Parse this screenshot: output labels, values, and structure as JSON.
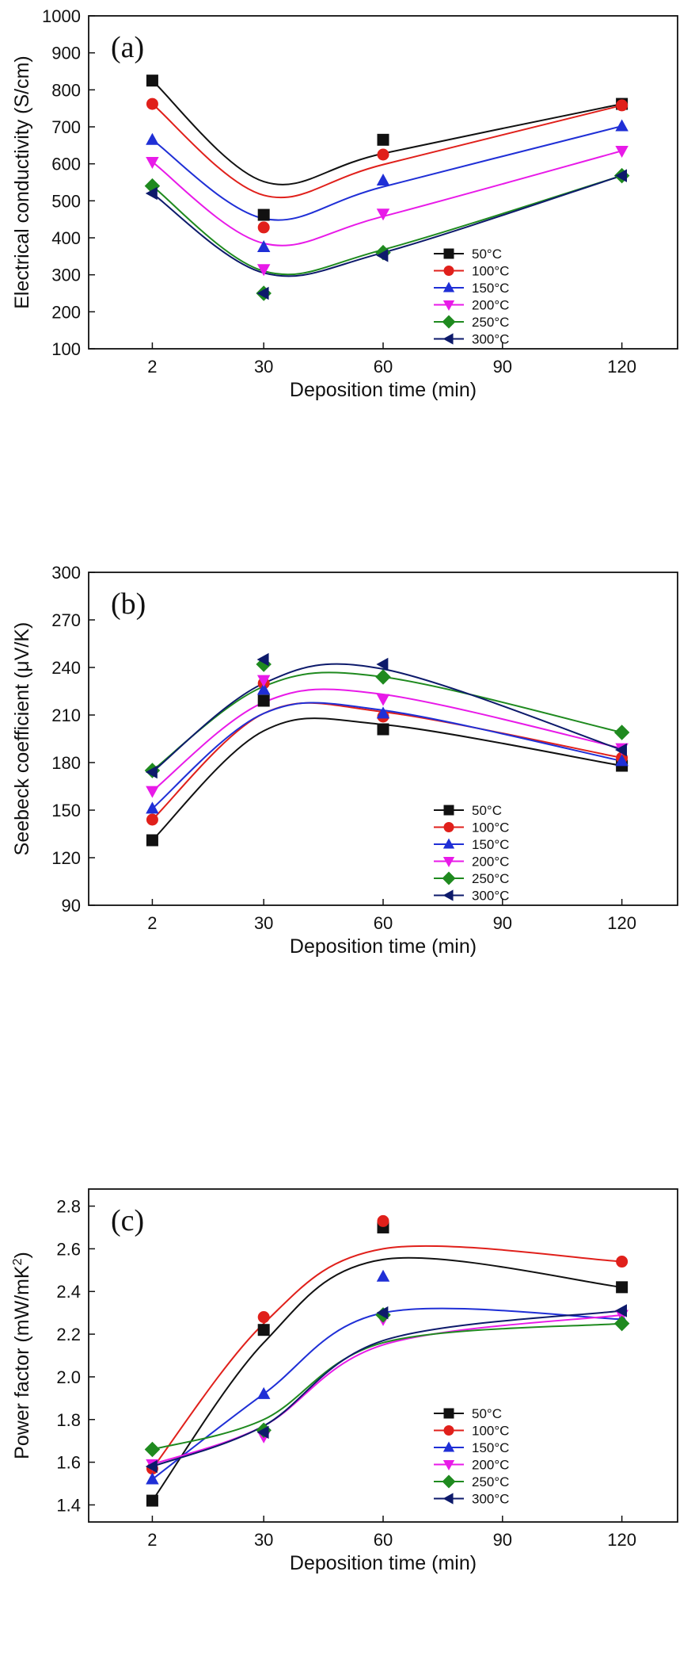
{
  "chart_data": [
    {
      "type": "scatter",
      "panel_label": "(a)",
      "xlabel": "Deposition time (min)",
      "ylabel": "Electrical conductivity (S/cm)",
      "x": [
        2,
        30,
        60,
        120
      ],
      "xticks": [
        "2",
        "30",
        "60",
        "90",
        "120"
      ],
      "yticks": [
        "100",
        "200",
        "300",
        "400",
        "500",
        "600",
        "700",
        "800",
        "900",
        "1000"
      ],
      "ylim": [
        100,
        1000
      ],
      "legend_position": "right-middle",
      "series": [
        {
          "name": "50°C",
          "values": [
            825,
            462,
            665,
            762
          ],
          "curve": [
            825,
            552,
            628,
            762
          ]
        },
        {
          "name": "100°C",
          "values": [
            762,
            428,
            625,
            758
          ],
          "curve": [
            762,
            515,
            598,
            758
          ]
        },
        {
          "name": "150°C",
          "values": [
            665,
            375,
            555,
            702
          ],
          "curve": [
            665,
            452,
            538,
            702
          ]
        },
        {
          "name": "200°C",
          "values": [
            605,
            315,
            465,
            635
          ],
          "curve": [
            605,
            385,
            458,
            635
          ]
        },
        {
          "name": "250°C",
          "values": [
            540,
            250,
            360,
            568
          ],
          "curve": [
            540,
            310,
            368,
            568
          ]
        },
        {
          "name": "300°C",
          "values": [
            520,
            250,
            352,
            568
          ],
          "curve": [
            520,
            305,
            360,
            568
          ]
        }
      ]
    },
    {
      "type": "scatter",
      "panel_label": "(b)",
      "xlabel": "Deposition time (min)",
      "ylabel": "Seebeck coefficient (μV/K)",
      "x": [
        2,
        30,
        60,
        120
      ],
      "xticks": [
        "2",
        "30",
        "60",
        "90",
        "120"
      ],
      "yticks": [
        "90",
        "120",
        "150",
        "180",
        "210",
        "240",
        "270",
        "300"
      ],
      "ylim": [
        90,
        300
      ],
      "legend_position": "bottom-right",
      "series": [
        {
          "name": "50°C",
          "values": [
            131,
            219,
            201,
            178
          ],
          "curve": [
            131,
            200,
            204,
            178
          ]
        },
        {
          "name": "100°C",
          "values": [
            144,
            230,
            209,
            183
          ],
          "curve": [
            144,
            211,
            212,
            183
          ]
        },
        {
          "name": "150°C",
          "values": [
            151,
            226,
            211,
            181
          ],
          "curve": [
            151,
            211,
            213,
            181
          ]
        },
        {
          "name": "200°C",
          "values": [
            162,
            232,
            220,
            189
          ],
          "curve": [
            162,
            218,
            223,
            189
          ]
        },
        {
          "name": "250°C",
          "values": [
            175,
            242,
            234,
            199
          ],
          "curve": [
            175,
            228,
            234,
            199
          ]
        },
        {
          "name": "300°C",
          "values": [
            174,
            245,
            242,
            188
          ],
          "curve": [
            174,
            230,
            239,
            188
          ]
        }
      ]
    },
    {
      "type": "scatter",
      "panel_label": "(c)",
      "xlabel": "Deposition time (min)",
      "ylabel_main": "Power factor (mW/mK",
      "ylabel_sup": "2",
      "ylabel_end": ")",
      "x": [
        2,
        30,
        60,
        120
      ],
      "xticks": [
        "2",
        "30",
        "60",
        "90",
        "120"
      ],
      "yticks": [
        "1.4",
        "1.6",
        "1.8",
        "2.0",
        "2.2",
        "2.4",
        "2.6",
        "2.8"
      ],
      "ylim": [
        1.32,
        2.88
      ],
      "legend_position": "bottom-right",
      "series": [
        {
          "name": "50°C",
          "values": [
            1.42,
            2.22,
            2.7,
            2.42
          ],
          "curve": [
            1.42,
            2.16,
            2.55,
            2.42
          ]
        },
        {
          "name": "100°C",
          "values": [
            1.57,
            2.28,
            2.73,
            2.54
          ],
          "curve": [
            1.57,
            2.25,
            2.6,
            2.54
          ]
        },
        {
          "name": "150°C",
          "values": [
            1.52,
            1.92,
            2.47,
            2.27
          ],
          "curve": [
            1.52,
            1.92,
            2.3,
            2.27
          ]
        },
        {
          "name": "200°C",
          "values": [
            1.59,
            1.72,
            2.27,
            2.29
          ],
          "curve": [
            1.59,
            1.77,
            2.15,
            2.29
          ]
        },
        {
          "name": "250°C",
          "values": [
            1.66,
            1.75,
            2.29,
            2.25
          ],
          "curve": [
            1.66,
            1.8,
            2.16,
            2.25
          ]
        },
        {
          "name": "300°C",
          "values": [
            1.58,
            1.74,
            2.3,
            2.31
          ],
          "curve": [
            1.58,
            1.77,
            2.17,
            2.31
          ]
        }
      ]
    }
  ],
  "series_style": [
    {
      "color": "#111111",
      "marker": "square"
    },
    {
      "color": "#e0201b",
      "marker": "circle"
    },
    {
      "color": "#1f2fd6",
      "marker": "triangle-up"
    },
    {
      "color": "#e81ae8",
      "marker": "triangle-down"
    },
    {
      "color": "#1f8a1f",
      "marker": "diamond"
    },
    {
      "color": "#0d1a6b",
      "marker": "triangle-left"
    }
  ]
}
